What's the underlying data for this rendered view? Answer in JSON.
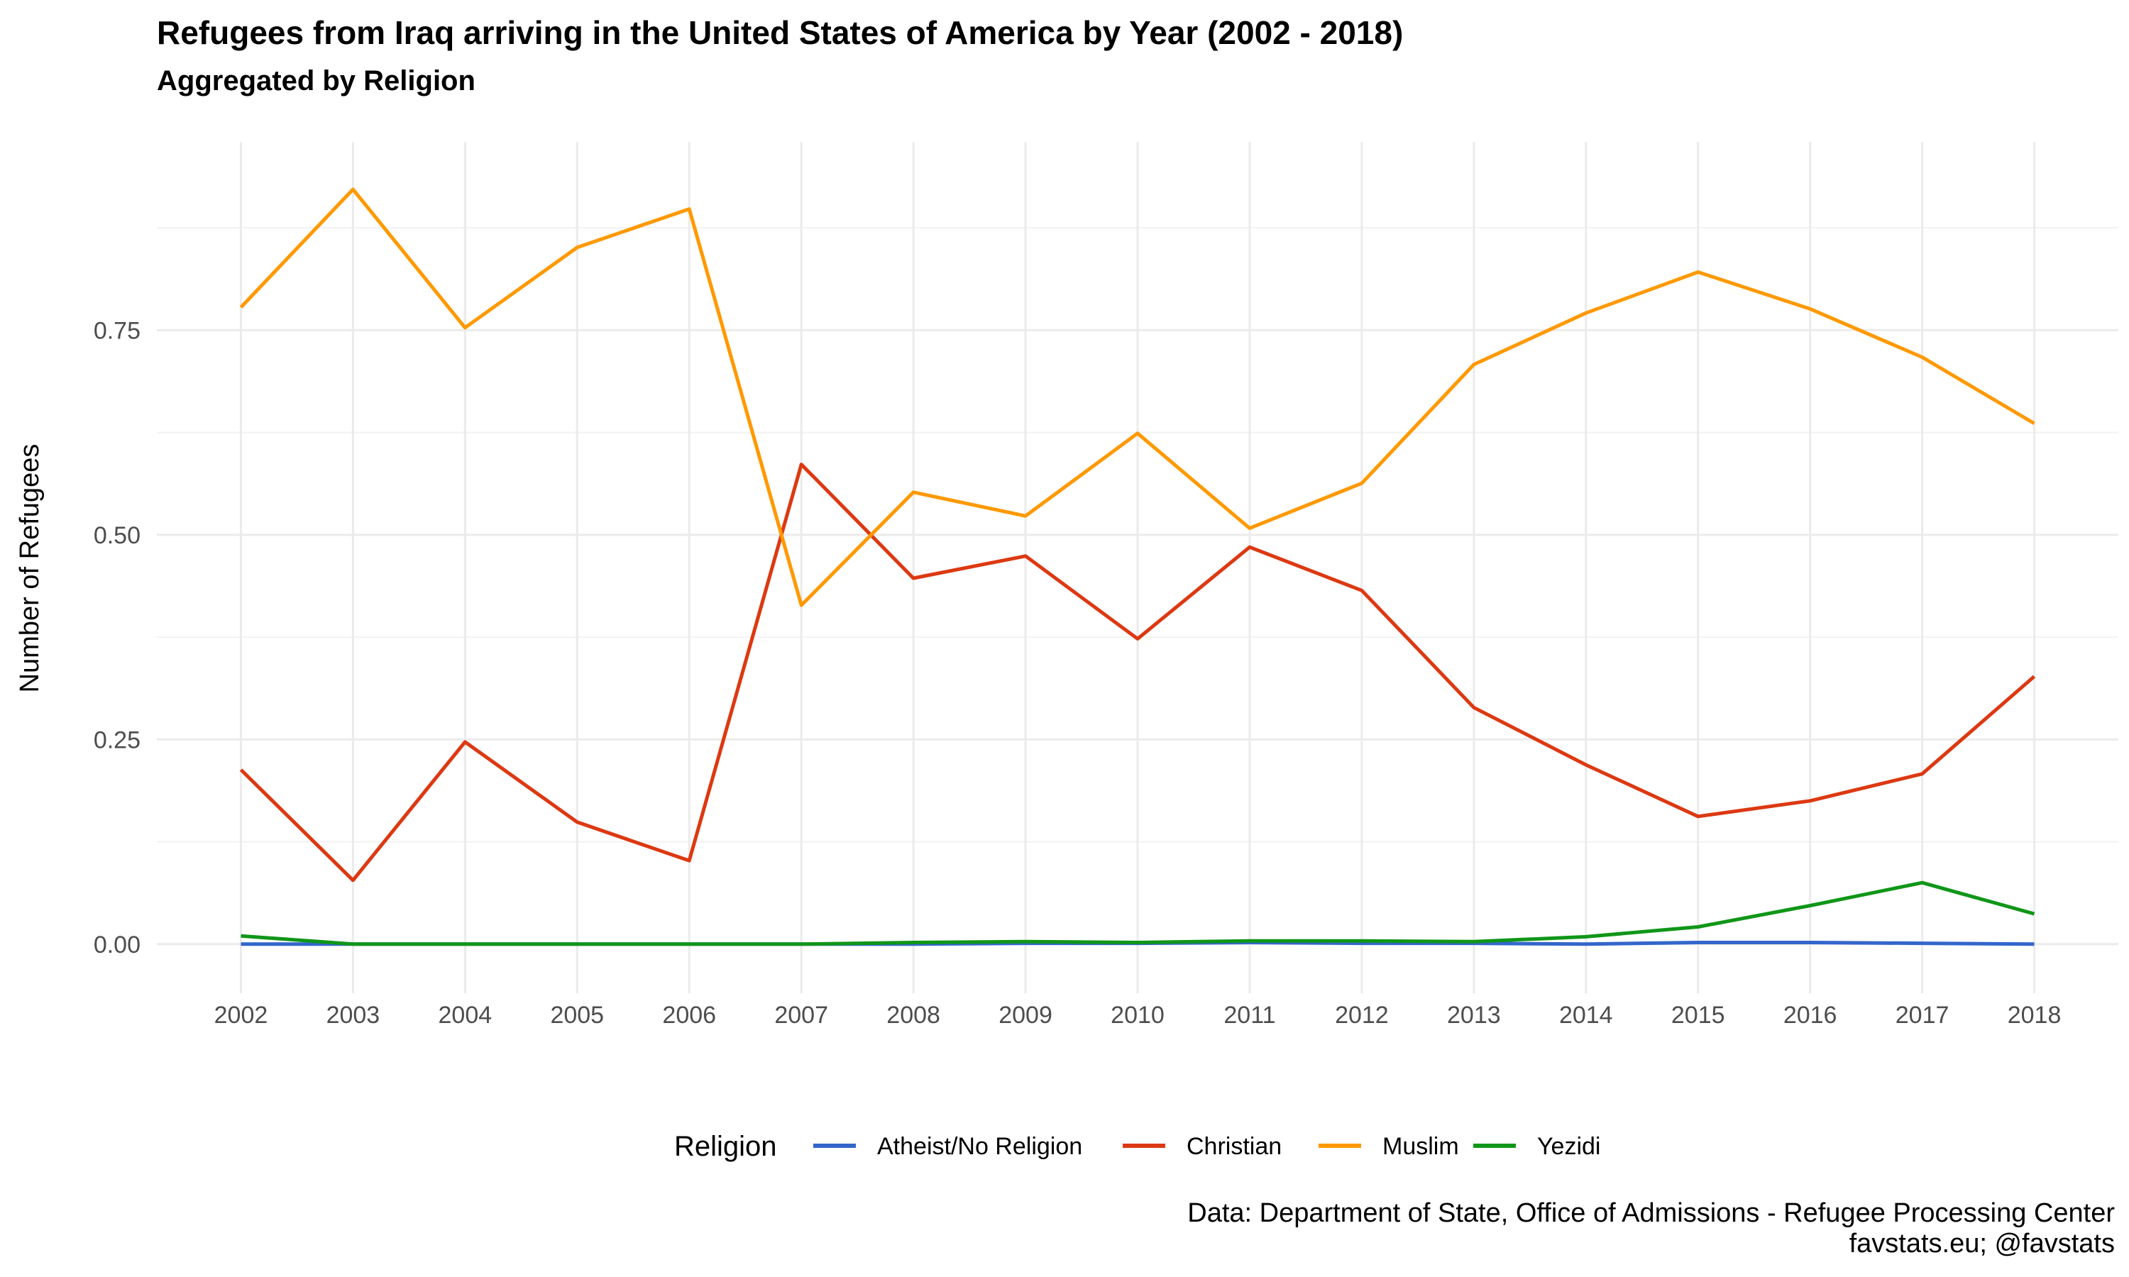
{
  "chart_data": {
    "type": "line",
    "title": "Refugees from Iraq arriving in the United States of America by Year (2002 - 2018)",
    "subtitle": "Aggregated by Religion",
    "xlabel": "",
    "ylabel": "Number of Refugees",
    "x": [
      2002,
      2003,
      2004,
      2005,
      2006,
      2007,
      2008,
      2009,
      2010,
      2011,
      2012,
      2013,
      2014,
      2015,
      2016,
      2017,
      2018
    ],
    "x_tick_labels": [
      "2002",
      "2003",
      "2004",
      "2005",
      "2006",
      "2007",
      "2008",
      "2009",
      "2010",
      "2011",
      "2012",
      "2013",
      "2014",
      "2015",
      "2016",
      "2017",
      "2018"
    ],
    "xlim": [
      2001.25,
      2018.75
    ],
    "ylim": [
      -0.06,
      0.98
    ],
    "y_ticks": [
      0,
      0.25,
      0.5,
      0.75
    ],
    "y_tick_labels": [
      "0.00",
      "0.25",
      "0.50",
      "0.75"
    ],
    "y_minor_ticks": [
      0.125,
      0.375,
      0.625,
      0.875
    ],
    "grid": true,
    "legend": {
      "title": "Religion",
      "position": "bottom"
    },
    "series": [
      {
        "name": "Atheist/No Religion",
        "color": "#3366cc",
        "values": [
          0.0,
          0.0,
          0.0,
          0.0,
          0.0,
          0.0,
          0.0,
          0.001,
          0.001,
          0.002,
          0.001,
          0.001,
          0.0,
          0.002,
          0.002,
          0.001,
          0.0
        ]
      },
      {
        "name": "Christian",
        "color": "#dc3912",
        "values": [
          0.213,
          0.078,
          0.247,
          0.149,
          0.102,
          0.586,
          0.447,
          0.474,
          0.373,
          0.485,
          0.432,
          0.289,
          0.219,
          0.156,
          0.175,
          0.208,
          0.327
        ]
      },
      {
        "name": "Muslim",
        "color": "#ff9900",
        "values": [
          0.778,
          0.922,
          0.753,
          0.851,
          0.898,
          0.414,
          0.552,
          0.523,
          0.624,
          0.508,
          0.563,
          0.708,
          0.771,
          0.821,
          0.776,
          0.717,
          0.636
        ]
      },
      {
        "name": "Yezidi",
        "color": "#109618",
        "values": [
          0.01,
          0.0,
          0.0,
          0.0,
          0.0,
          0.0,
          0.002,
          0.003,
          0.002,
          0.004,
          0.004,
          0.003,
          0.009,
          0.021,
          0.047,
          0.075,
          0.037
        ]
      }
    ],
    "caption": [
      "Data: Department of State, Office of Admissions - Refugee Processing Center",
      "favstats.eu; @favstats"
    ]
  }
}
